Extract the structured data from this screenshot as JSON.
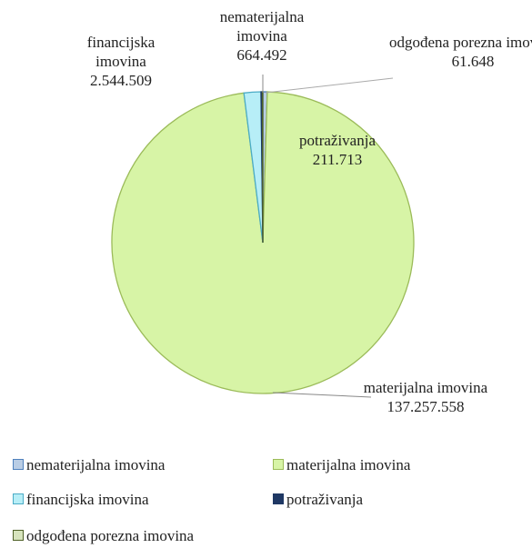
{
  "chart_data": {
    "type": "pie",
    "categories": [
      "nematerijalna imovina",
      "materijalna imovina",
      "financijska imovina",
      "potraživanja",
      "odgođena porezna imovina"
    ],
    "values": [
      664492,
      137257558,
      2544509,
      211713,
      61648
    ],
    "value_labels": [
      "664.492",
      "137.257.558",
      "2.544.509",
      "211.713",
      "61.648"
    ],
    "colors": [
      "#b9cde5",
      "#d7f4a6",
      "#b7eef7",
      "#1f3864",
      "#d7e4bd"
    ],
    "borders": [
      "#4f81bd",
      "#9bbb59",
      "#4bacc6",
      "#1f3864",
      "#4f6228"
    ],
    "legend": "bottom"
  }
}
